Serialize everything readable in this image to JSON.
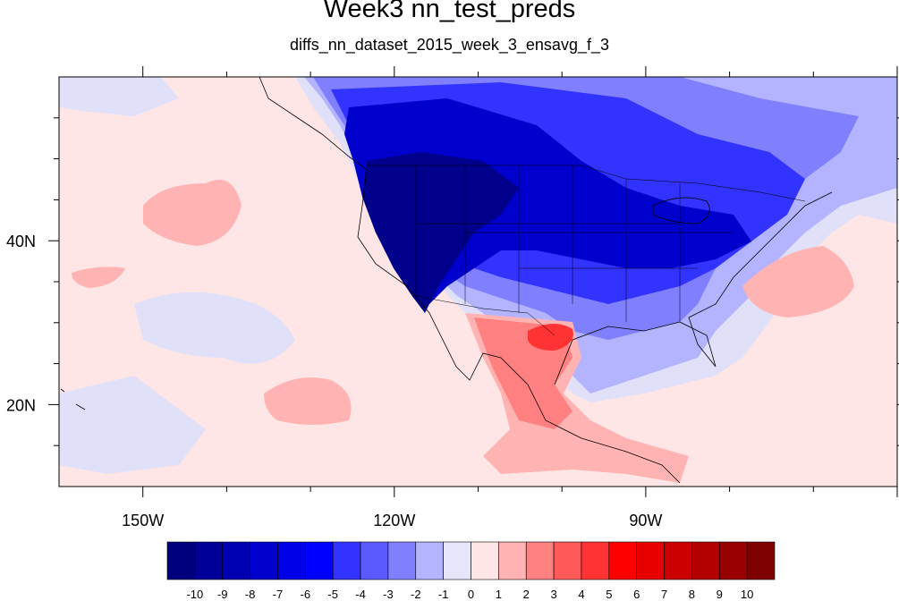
{
  "title": "Week3 nn_test_preds",
  "subtitle": "diffs_nn_dataset_2015_week_3_ensavg_f_3",
  "x_ticks": [
    {
      "label": "150W",
      "lon": -150
    },
    {
      "label": "120W",
      "lon": -120
    },
    {
      "label": "90W",
      "lon": -90
    }
  ],
  "y_ticks": [
    {
      "label": "40N",
      "lat": 40
    },
    {
      "label": "20N",
      "lat": 20
    }
  ],
  "extent": {
    "lon": [
      -160,
      -60
    ],
    "lat": [
      10,
      60
    ]
  },
  "colorbar": {
    "labels": [
      "-10",
      "-9",
      "-8",
      "-7",
      "-6",
      "-5",
      "-4",
      "-3",
      "-2",
      "-1",
      "0",
      "1",
      "2",
      "3",
      "4",
      "5",
      "6",
      "7",
      "8",
      "9",
      "10"
    ],
    "colors": [
      "#00007f",
      "#000099",
      "#0000b3",
      "#0000cc",
      "#0000e6",
      "#0000ff",
      "#3333ff",
      "#5a5aff",
      "#8080ff",
      "#b3b3ff",
      "#e6e6fa",
      "#ffe6e6",
      "#ffb3b3",
      "#ff8080",
      "#ff5a5a",
      "#ff3333",
      "#ff0000",
      "#e60000",
      "#cc0000",
      "#b30000",
      "#990000",
      "#7f0000"
    ]
  },
  "colors": {
    "background": "#ffe6e6",
    "light_blue": "#e0e0f8",
    "pale_blue": "#b3b3ff",
    "mid_blue": "#8080ff",
    "blue": "#3333ff",
    "deep_blue": "#0000cc",
    "darkest_blue": "#00008b",
    "pink": "#ffb3b3",
    "salmon": "#ff8080",
    "red": "#ff3333"
  }
}
